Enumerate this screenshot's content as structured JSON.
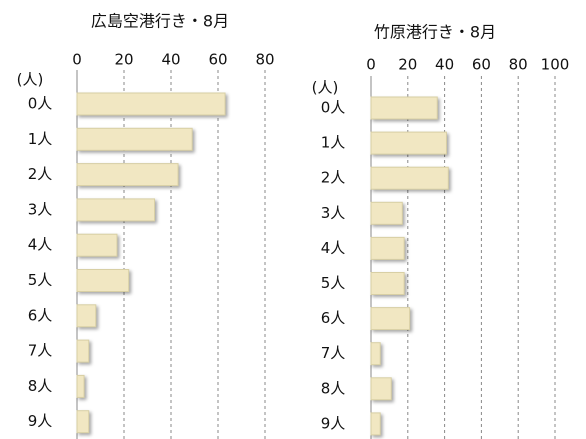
{
  "chart_data": [
    {
      "type": "bar",
      "orientation": "horizontal",
      "title": "広島空港行き・8月",
      "unit_label": "(人)",
      "categories": [
        "0人",
        "1人",
        "2人",
        "3人",
        "4人",
        "5人",
        "6人",
        "7人",
        "8人",
        "9人"
      ],
      "values": [
        63,
        49,
        43,
        33,
        17,
        22,
        8,
        5,
        3,
        5
      ],
      "color": "#f1e7c2",
      "xlim": [
        0,
        80
      ],
      "xticks": [
        0,
        20,
        40,
        60,
        80
      ],
      "grid": true
    },
    {
      "type": "bar",
      "orientation": "horizontal",
      "title": "竹原港行き・8月",
      "unit_label": "(人)",
      "categories": [
        "0人",
        "1人",
        "2人",
        "3人",
        "4人",
        "5人",
        "6人",
        "7人",
        "8人",
        "9人"
      ],
      "values": [
        36,
        41,
        42,
        17,
        18,
        18,
        21,
        5,
        11,
        5
      ],
      "color": "#f1e7c2",
      "xlim": [
        0,
        100
      ],
      "xticks": [
        0,
        20,
        40,
        60,
        80,
        100
      ],
      "grid": true
    }
  ]
}
